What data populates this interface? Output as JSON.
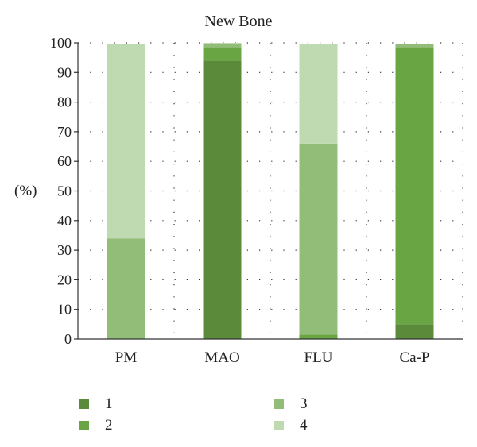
{
  "chart_data": {
    "type": "bar",
    "stacked": true,
    "title": "New Bone",
    "ylabel": "(%)",
    "xlabel": "",
    "ylim": [
      0,
      100
    ],
    "yticks": [
      0,
      10,
      20,
      30,
      40,
      50,
      60,
      70,
      80,
      90,
      100
    ],
    "grid": "dotted",
    "legend_position": "bottom",
    "categories": [
      "PM",
      "MAO",
      "FLU",
      "Ca-P"
    ],
    "series": [
      {
        "name": "1",
        "color": "#5b8a3a",
        "values": [
          0,
          94,
          0,
          5
        ]
      },
      {
        "name": "2",
        "color": "#6aa544",
        "values": [
          0,
          4.5,
          1.5,
          93.5
        ]
      },
      {
        "name": "3",
        "color": "#91bd78",
        "values": [
          34,
          1,
          64.5,
          1
        ]
      },
      {
        "name": "4",
        "color": "#bfdab0",
        "values": [
          65.5,
          0.5,
          33.5,
          0
        ]
      }
    ]
  }
}
